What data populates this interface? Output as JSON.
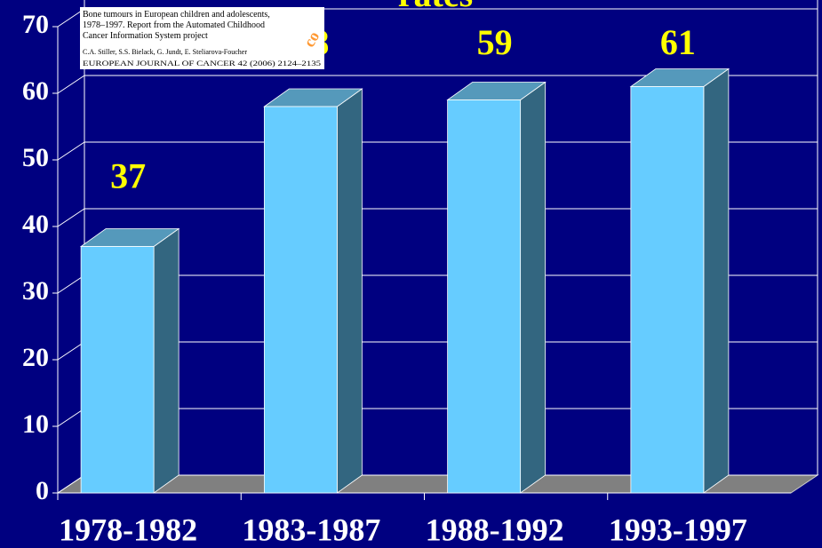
{
  "chart_data": {
    "type": "bar3d",
    "title": "rates",
    "categories": [
      "1978-1982",
      "1983-1987",
      "1988-1992",
      "1993-1997"
    ],
    "values": [
      37,
      58,
      59,
      61
    ],
    "color": "#66ccff",
    "ylim": [
      0,
      70
    ],
    "yticks": [
      0,
      10,
      20,
      30,
      40,
      50,
      60,
      70
    ],
    "grid": true,
    "annotations": [
      "Bone tumours in European children and adolescents,",
      "1978–1997. Report from the Automated Childhood",
      "Cancer Information System project",
      "C.A. Stiller, S.S. Bielack, G. Jundt, E. Steliarova-Foucher",
      "EUROPEAN JOURNAL OF CANCER 42 (2006) 2124–2135",
      "co"
    ]
  }
}
